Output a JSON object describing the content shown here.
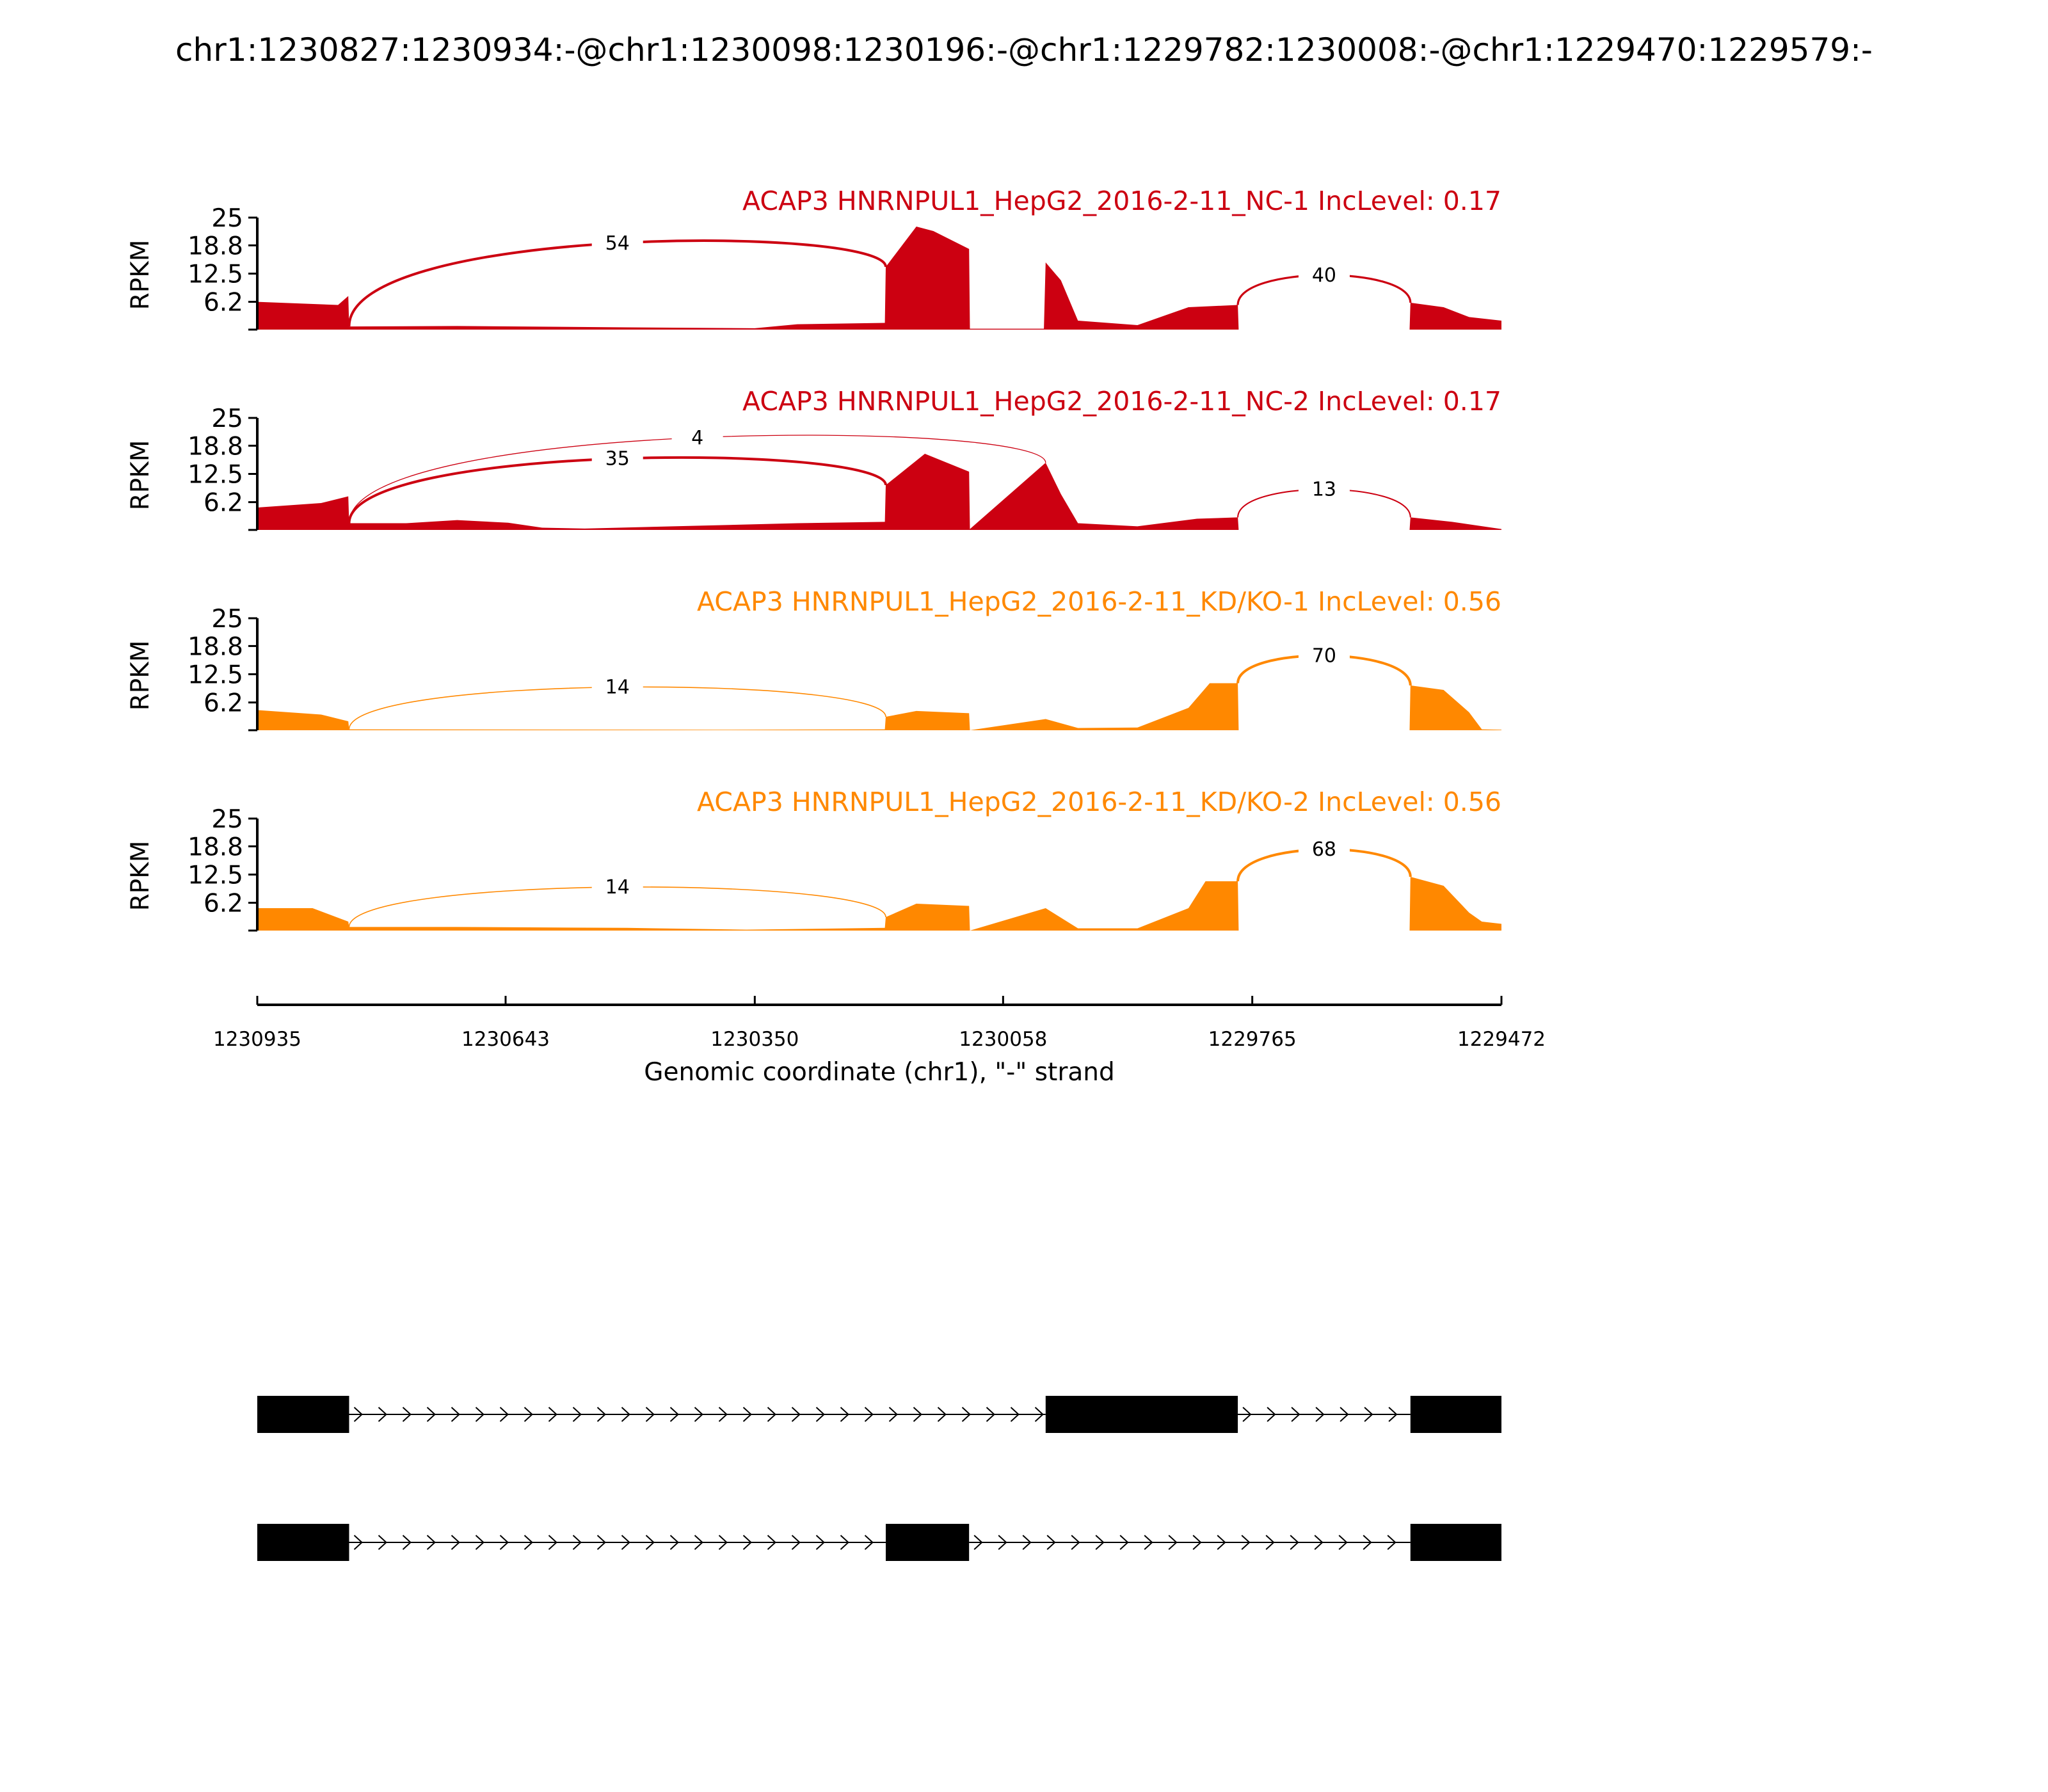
{
  "chart_data": {
    "type": "sashimi",
    "title": "chr1:1230827:1230934:-@chr1:1230098:1230196:-@chr1:1229782:1230008:-@chr1:1229470:1229579:-",
    "xlabel": "Genomic coordinate (chr1), \"-\" strand",
    "xlim": [
      1230935,
      1229472
    ],
    "x_ticks": [
      "1230935",
      "1230643",
      "1230350",
      "1230058",
      "1229765",
      "1229472"
    ],
    "y_ticks": [
      "25",
      "18.8",
      "12.5",
      "6.2"
    ],
    "ylabel": "RPKM",
    "ylim": [
      0,
      25
    ],
    "exons_observed": [
      {
        "start": 1230935,
        "end": 1230827
      },
      {
        "start": 1230196,
        "end": 1230098
      },
      {
        "start": 1230008,
        "end": 1229782
      },
      {
        "start": 1229579,
        "end": 1229472
      }
    ],
    "series": [
      {
        "name": "ACAP3 HNRNPUL1_HepG2_2016-2-11_NC-1 IncLevel: 0.17",
        "color": "#cc0011",
        "coverage": [
          [
            1230935,
            6.2
          ],
          [
            1230840,
            5.5
          ],
          [
            1230828,
            7.5
          ],
          [
            1230827,
            0.7
          ],
          [
            1230700,
            0.8
          ],
          [
            1230500,
            0.5
          ],
          [
            1230350,
            0.3
          ],
          [
            1230300,
            1.2
          ],
          [
            1230197,
            1.5
          ],
          [
            1230196,
            14
          ],
          [
            1230160,
            23
          ],
          [
            1230140,
            22
          ],
          [
            1230098,
            18
          ],
          [
            1230097,
            0.2
          ],
          [
            1230010,
            0.2
          ],
          [
            1230008,
            15
          ],
          [
            1229990,
            11
          ],
          [
            1229970,
            2
          ],
          [
            1229900,
            1
          ],
          [
            1229870,
            3
          ],
          [
            1229840,
            5
          ],
          [
            1229782,
            5.5
          ],
          [
            1229781,
            0
          ],
          [
            1229580,
            0
          ],
          [
            1229579,
            6
          ],
          [
            1229540,
            5
          ],
          [
            1229510,
            2.8
          ],
          [
            1229472,
            2
          ]
        ],
        "junctions": [
          {
            "donor": 1230827,
            "acceptor": 1230196,
            "count": "54",
            "side": "above"
          },
          {
            "donor": 1229782,
            "acceptor": 1229579,
            "count": "40",
            "side": "above"
          }
        ]
      },
      {
        "name": "ACAP3 HNRNPUL1_HepG2_2016-2-11_NC-2 IncLevel: 0.17",
        "color": "#cc0011",
        "coverage": [
          [
            1230935,
            5
          ],
          [
            1230860,
            6
          ],
          [
            1230828,
            7.5
          ],
          [
            1230827,
            1.5
          ],
          [
            1230760,
            1.5
          ],
          [
            1230700,
            2.2
          ],
          [
            1230640,
            1.6
          ],
          [
            1230600,
            0.5
          ],
          [
            1230550,
            0.3
          ],
          [
            1230300,
            1.5
          ],
          [
            1230197,
            1.8
          ],
          [
            1230196,
            10
          ],
          [
            1230150,
            17
          ],
          [
            1230098,
            13
          ],
          [
            1230097,
            0.2
          ],
          [
            1230008,
            15
          ],
          [
            1229990,
            8
          ],
          [
            1229970,
            1.5
          ],
          [
            1229900,
            0.8
          ],
          [
            1229830,
            2.5
          ],
          [
            1229782,
            2.8
          ],
          [
            1229781,
            0
          ],
          [
            1229580,
            0
          ],
          [
            1229579,
            2.8
          ],
          [
            1229530,
            1.8
          ],
          [
            1229472,
            0.2
          ]
        ],
        "junctions": [
          {
            "donor": 1230827,
            "acceptor": 1230196,
            "count": "35",
            "side": "above"
          },
          {
            "donor": 1230827,
            "acceptor": 1230008,
            "count": "4",
            "side": "above"
          },
          {
            "donor": 1229782,
            "acceptor": 1229579,
            "count": "13",
            "side": "above"
          }
        ]
      },
      {
        "name": "ACAP3 HNRNPUL1_HepG2_2016-2-11_KD/KO-1 IncLevel: 0.56",
        "color": "#ff8800",
        "coverage": [
          [
            1230935,
            4.5
          ],
          [
            1230860,
            3.5
          ],
          [
            1230828,
            2
          ],
          [
            1230827,
            0.2
          ],
          [
            1230400,
            0.1
          ],
          [
            1230197,
            0.2
          ],
          [
            1230196,
            3
          ],
          [
            1230160,
            4.3
          ],
          [
            1230098,
            3.8
          ],
          [
            1230097,
            0
          ],
          [
            1230008,
            2.5
          ],
          [
            1229970,
            0.5
          ],
          [
            1229900,
            0.6
          ],
          [
            1229840,
            5
          ],
          [
            1229815,
            10.5
          ],
          [
            1229782,
            10.5
          ],
          [
            1229781,
            0
          ],
          [
            1229580,
            0
          ],
          [
            1229579,
            10
          ],
          [
            1229540,
            9
          ],
          [
            1229510,
            4
          ],
          [
            1229495,
            0.2
          ],
          [
            1229472,
            0.1
          ]
        ],
        "junctions": [
          {
            "donor": 1230827,
            "acceptor": 1230196,
            "count": "14",
            "side": "above"
          },
          {
            "donor": 1229782,
            "acceptor": 1229579,
            "count": "70",
            "side": "above"
          }
        ]
      },
      {
        "name": "ACAP3 HNRNPUL1_HepG2_2016-2-11_KD/KO-2 IncLevel: 0.56",
        "color": "#ff8800",
        "coverage": [
          [
            1230935,
            5
          ],
          [
            1230870,
            5
          ],
          [
            1230828,
            2
          ],
          [
            1230827,
            0.8
          ],
          [
            1230700,
            0.8
          ],
          [
            1230500,
            0.6
          ],
          [
            1230360,
            0.2
          ],
          [
            1230197,
            0.6
          ],
          [
            1230196,
            3
          ],
          [
            1230160,
            6
          ],
          [
            1230098,
            5.5
          ],
          [
            1230097,
            0
          ],
          [
            1230008,
            5
          ],
          [
            1229970,
            0.5
          ],
          [
            1229900,
            0.5
          ],
          [
            1229840,
            5
          ],
          [
            1229820,
            11
          ],
          [
            1229782,
            11
          ],
          [
            1229781,
            0
          ],
          [
            1229580,
            0
          ],
          [
            1229579,
            12
          ],
          [
            1229540,
            10
          ],
          [
            1229510,
            4
          ],
          [
            1229495,
            2
          ],
          [
            1229472,
            1.5
          ]
        ],
        "junctions": [
          {
            "donor": 1230827,
            "acceptor": 1230196,
            "count": "14",
            "side": "above"
          },
          {
            "donor": 1229782,
            "acceptor": 1229579,
            "count": "68",
            "side": "above"
          }
        ]
      }
    ],
    "isoforms": [
      {
        "exons": [
          [
            1230935,
            1230827
          ],
          [
            1230008,
            1229782
          ],
          [
            1229579,
            1229472
          ]
        ]
      },
      {
        "exons": [
          [
            1230935,
            1230827
          ],
          [
            1230196,
            1230098
          ],
          [
            1229579,
            1229472
          ]
        ]
      }
    ]
  }
}
